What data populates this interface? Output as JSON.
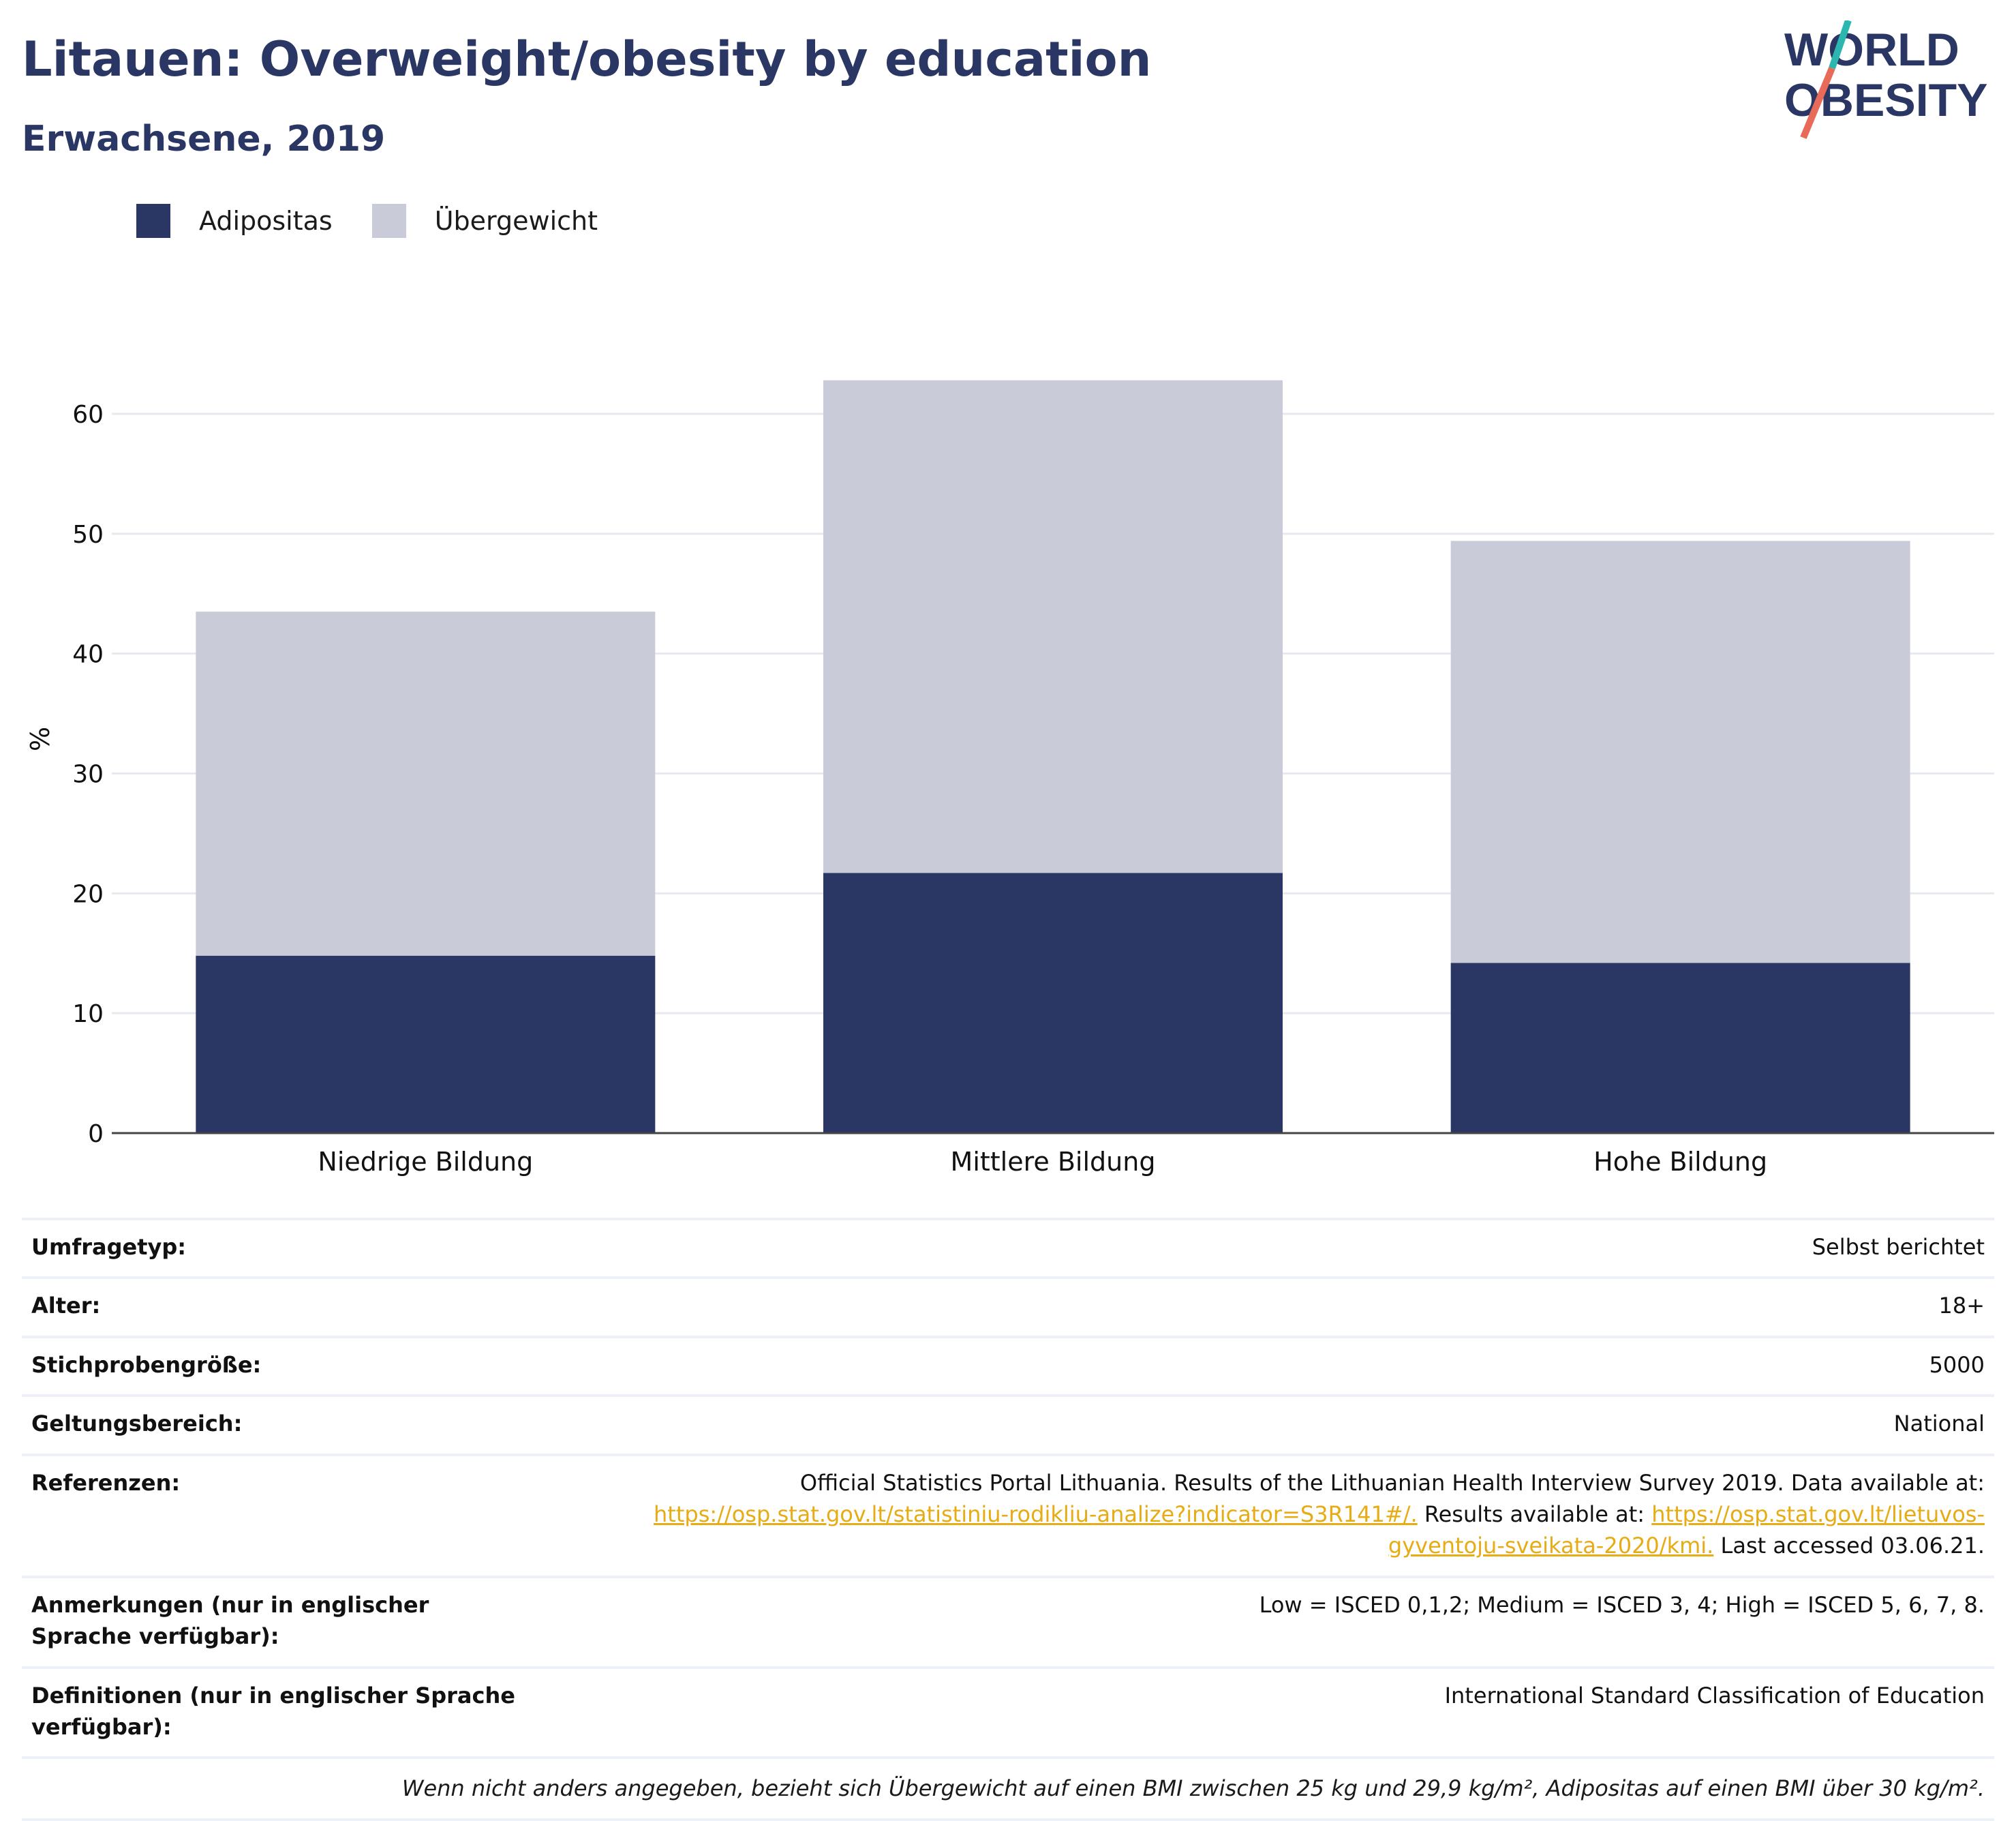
{
  "header": {
    "title": "Litauen: Overweight/obesity by education",
    "subtitle": "Erwachsene, 2019"
  },
  "logo": {
    "line1": "WORLD",
    "line2": "OBESITY",
    "colors": {
      "text": "#2a3663",
      "slash_top": "#2bb6b0",
      "slash_bottom": "#e86a58"
    }
  },
  "legend": {
    "items": [
      {
        "label": "Adipositas",
        "color": "#2a3663"
      },
      {
        "label": "Übergewicht",
        "color": "#c9ccd8"
      }
    ]
  },
  "chart_data": {
    "type": "bar",
    "stacked": true,
    "categories": [
      "Niedrige Bildung",
      "Mittlere Bildung",
      "Hohe Bildung"
    ],
    "series": [
      {
        "name": "Adipositas",
        "color": "#2a3663",
        "values": [
          14.8,
          21.7,
          14.2
        ]
      },
      {
        "name": "Übergewicht",
        "color": "#c9ccd8",
        "values": [
          28.7,
          41.1,
          35.2
        ]
      }
    ],
    "totals": [
      43.5,
      62.8,
      49.4
    ],
    "ylabel": "%",
    "ylim": [
      0,
      65
    ],
    "yticks": [
      0,
      10,
      20,
      30,
      40,
      50,
      60
    ],
    "grid": true,
    "legend_position": "top-left"
  },
  "info": {
    "rows": [
      {
        "label": "Umfragetyp:",
        "value": "Selbst berichtet"
      },
      {
        "label": "Alter:",
        "value": "18+"
      },
      {
        "label": "Stichprobengröße:",
        "value": "5000"
      },
      {
        "label": "Geltungsbereich:",
        "value": "National"
      }
    ],
    "references": {
      "label": "Referenzen:",
      "text1": "Official Statistics Portal Lithuania. Results of the Lithuanian Health Interview Survey 2019. Data available at:",
      "link1": "https://osp.stat.gov.lt/statistiniu-rodikliu-analize?indicator=S3R141#/.",
      "text2": " Results available at: ",
      "link2": "https://osp.stat.gov.lt/lietuvos-gyventoju-sveikata-2020/kmi.",
      "text3": " Last accessed 03.06.21."
    },
    "notes": {
      "label": "Anmerkungen (nur in englischer Sprache verfügbar):",
      "value": "Low = ISCED 0,1,2; Medium = ISCED 3, 4; High = ISCED 5, 6, 7, 8."
    },
    "definitions": {
      "label": "Definitionen (nur in englischer Sprache verfügbar):",
      "value": "International Standard Classification of Education"
    },
    "footnote": "Wenn nicht anders angegeben, bezieht sich Übergewicht auf einen BMI zwischen 25 kg und 29,9 kg/m², Adipositas auf einen BMI über 30 kg/m²."
  }
}
